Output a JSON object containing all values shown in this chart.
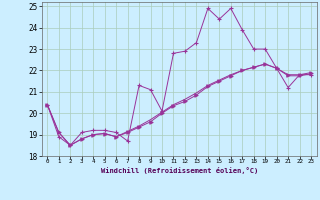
{
  "xlabel": "Windchill (Refroidissement éolien,°C)",
  "background_color": "#cceeff",
  "grid_color": "#aaccbb",
  "line_color": "#993399",
  "xlim": [
    -0.5,
    23.5
  ],
  "ylim": [
    18,
    25.2
  ],
  "yticks": [
    18,
    19,
    20,
    21,
    22,
    23,
    24,
    25
  ],
  "xticks": [
    0,
    1,
    2,
    3,
    4,
    5,
    6,
    7,
    8,
    9,
    10,
    11,
    12,
    13,
    14,
    15,
    16,
    17,
    18,
    19,
    20,
    21,
    22,
    23
  ],
  "series1_x": [
    0,
    1,
    2,
    3,
    4,
    5,
    6,
    7,
    8,
    9,
    10,
    11,
    12,
    13,
    14,
    15,
    16,
    17,
    18,
    19,
    20,
    21,
    22,
    23
  ],
  "series1_y": [
    20.4,
    18.9,
    18.5,
    19.1,
    19.2,
    19.2,
    19.1,
    18.7,
    21.3,
    21.1,
    20.1,
    22.8,
    22.9,
    23.3,
    24.9,
    24.4,
    24.9,
    23.9,
    23.0,
    23.0,
    22.1,
    21.2,
    21.8,
    21.8
  ],
  "series2_x": [
    0,
    1,
    2,
    3,
    4,
    5,
    6,
    7,
    8,
    9,
    10,
    11,
    12,
    13,
    14,
    15,
    16,
    17,
    18,
    19,
    20,
    21,
    22,
    23
  ],
  "series2_y": [
    20.4,
    19.1,
    18.5,
    18.8,
    19.0,
    19.05,
    18.9,
    19.1,
    19.35,
    19.6,
    20.0,
    20.35,
    20.55,
    20.85,
    21.25,
    21.5,
    21.75,
    22.0,
    22.15,
    22.3,
    22.1,
    21.8,
    21.8,
    21.9
  ],
  "series3_x": [
    0,
    1,
    2,
    3,
    4,
    5,
    6,
    7,
    8,
    9,
    10,
    11,
    12,
    13,
    14,
    15,
    16,
    17,
    18,
    19,
    20,
    21,
    22,
    23
  ],
  "series3_y": [
    20.4,
    19.1,
    18.5,
    18.8,
    19.0,
    19.05,
    18.9,
    19.15,
    19.4,
    19.7,
    20.05,
    20.4,
    20.65,
    20.95,
    21.3,
    21.55,
    21.8,
    22.0,
    22.15,
    22.3,
    22.1,
    21.75,
    21.75,
    21.85
  ]
}
